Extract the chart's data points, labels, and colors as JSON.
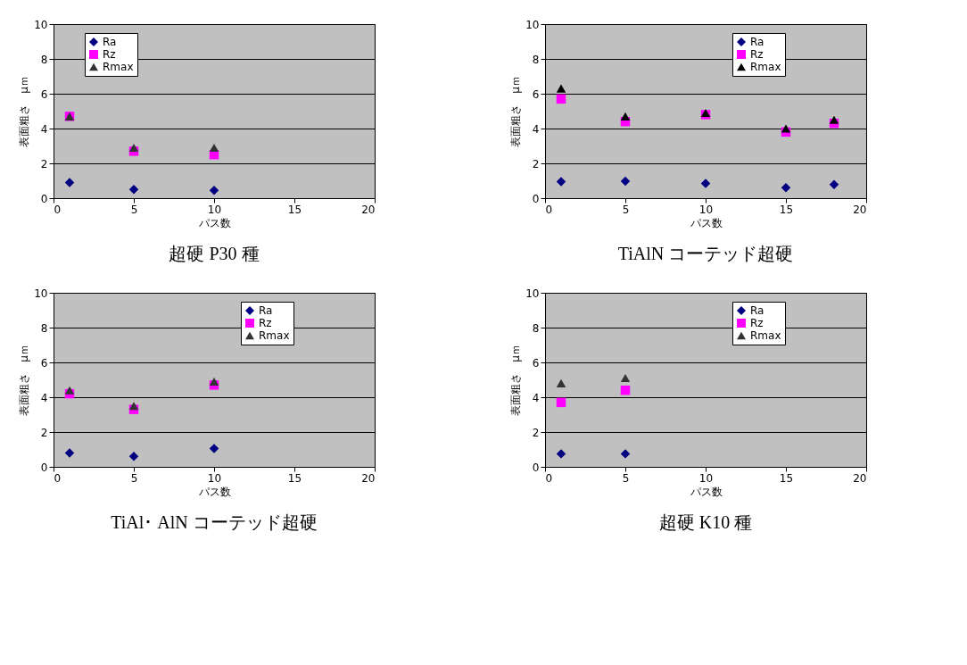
{
  "chart_data": [
    {
      "type": "scatter",
      "title": "超硬 P30 種",
      "xlabel": "パス数",
      "ylabel": "表面粗さ　μｍ",
      "x": [
        1,
        5,
        10
      ],
      "xlim": [
        0,
        20
      ],
      "xticks": [
        0,
        5,
        10,
        15,
        20
      ],
      "ylim": [
        0,
        10
      ],
      "yticks": [
        0,
        2,
        4,
        6,
        8,
        10
      ],
      "grid": "y",
      "legend": "top left",
      "series": [
        {
          "name": "Ra",
          "color": "#000080",
          "marker": "diamond",
          "values": [
            0.9,
            0.5,
            0.45
          ]
        },
        {
          "name": "Rz",
          "color": "#ff00ff",
          "marker": "square",
          "values": [
            4.7,
            2.7,
            2.5
          ]
        },
        {
          "name": "Rmax",
          "color": "#333333",
          "marker": "triangle",
          "values": [
            4.7,
            2.9,
            2.9
          ]
        }
      ]
    },
    {
      "type": "scatter",
      "title": "TiAlN コーテッド超硬",
      "xlabel": "パス数",
      "ylabel": "表面粗さ　μｍ",
      "x": [
        1,
        5,
        10,
        15,
        18
      ],
      "xlim": [
        0,
        20
      ],
      "xticks": [
        0,
        5,
        10,
        15,
        20
      ],
      "ylim": [
        0,
        10
      ],
      "yticks": [
        0,
        2,
        4,
        6,
        8,
        10
      ],
      "grid": "y",
      "legend": "top right",
      "series": [
        {
          "name": "Ra",
          "color": "#000080",
          "marker": "diamond",
          "values": [
            0.95,
            0.98,
            0.85,
            0.6,
            0.78
          ]
        },
        {
          "name": "Rz",
          "color": "#ff00ff",
          "marker": "square",
          "values": [
            5.7,
            4.4,
            4.8,
            3.8,
            4.3
          ]
        },
        {
          "name": "Rmax",
          "color": "#000000",
          "marker": "triangle",
          "values": [
            6.3,
            4.7,
            4.9,
            4.0,
            4.5
          ]
        }
      ]
    },
    {
      "type": "scatter",
      "title": "TiAl･ AlN コーテッド超硬",
      "xlabel": "パス数",
      "ylabel": "表面粗さ　μｍ",
      "x": [
        1,
        5,
        10
      ],
      "xlim": [
        0,
        20
      ],
      "xticks": [
        0,
        5,
        10,
        15,
        20
      ],
      "ylim": [
        0,
        10
      ],
      "yticks": [
        0,
        2,
        4,
        6,
        8,
        10
      ],
      "grid": "y",
      "legend": "top right",
      "series": [
        {
          "name": "Ra",
          "color": "#000080",
          "marker": "diamond",
          "values": [
            0.8,
            0.6,
            1.05
          ]
        },
        {
          "name": "Rz",
          "color": "#ff00ff",
          "marker": "square",
          "values": [
            4.2,
            3.3,
            4.7
          ]
        },
        {
          "name": "Rmax",
          "color": "#333333",
          "marker": "triangle",
          "values": [
            4.4,
            3.5,
            4.9
          ]
        }
      ]
    },
    {
      "type": "scatter",
      "title": "超硬 K10 種",
      "xlabel": "パス数",
      "ylabel": "表面粗さ　μｍ",
      "x": [
        1,
        5
      ],
      "xlim": [
        0,
        20
      ],
      "xticks": [
        0,
        5,
        10,
        15,
        20
      ],
      "ylim": [
        0,
        10
      ],
      "yticks": [
        0,
        2,
        4,
        6,
        8,
        10
      ],
      "grid": "y",
      "legend": "top right",
      "series": [
        {
          "name": "Ra",
          "color": "#000080",
          "marker": "diamond",
          "values": [
            0.75,
            0.75
          ]
        },
        {
          "name": "Rz",
          "color": "#ff00ff",
          "marker": "square",
          "values": [
            3.7,
            4.4
          ]
        },
        {
          "name": "Rmax",
          "color": "#333333",
          "marker": "triangle",
          "values": [
            4.8,
            5.1
          ]
        }
      ]
    }
  ]
}
